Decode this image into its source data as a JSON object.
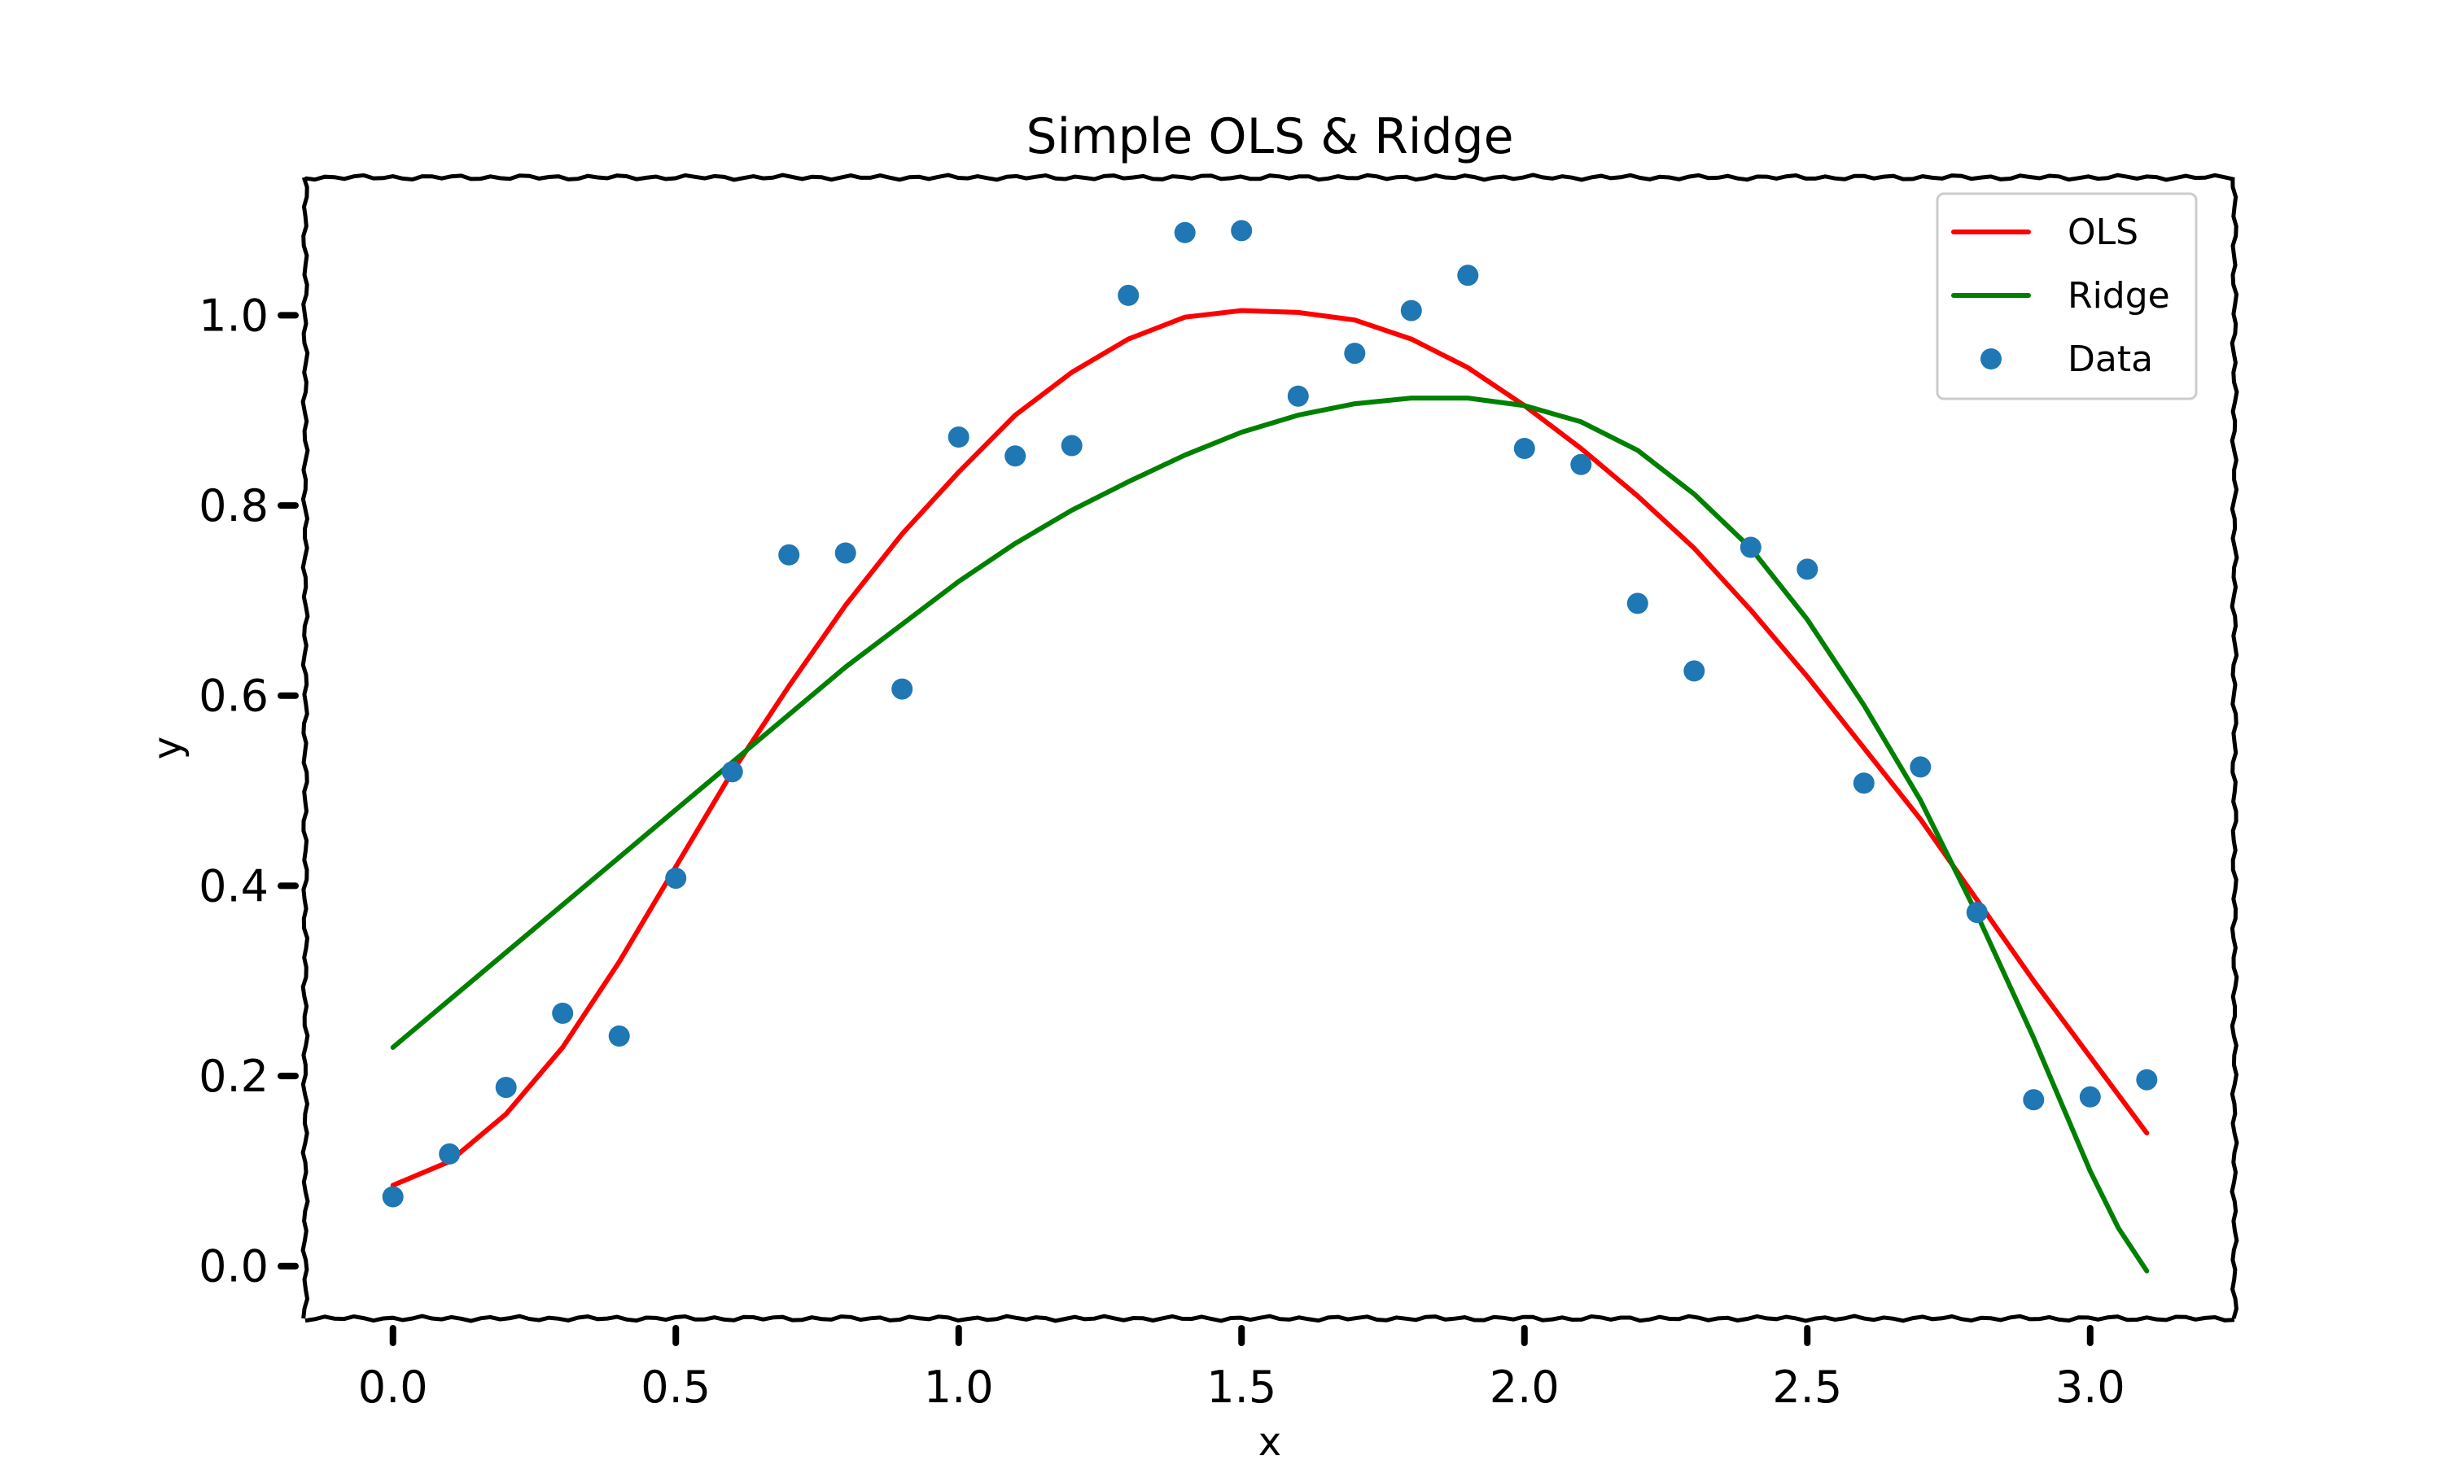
{
  "chart_data": {
    "type": "line",
    "title": "Simple OLS & Ridge",
    "xlabel": "x",
    "ylabel": "y",
    "xlim": [
      -0.155,
      3.255
    ],
    "ylim": [
      -0.055,
      1.145
    ],
    "xticks": [
      0.0,
      0.5,
      1.0,
      1.5,
      2.0,
      2.5,
      3.0
    ],
    "xtick_labels": [
      "0.0",
      "0.5",
      "1.0",
      "1.5",
      "2.0",
      "2.5",
      "3.0"
    ],
    "yticks": [
      0.0,
      0.2,
      0.4,
      0.6,
      0.8,
      1.0
    ],
    "ytick_labels": [
      "0.0",
      "0.2",
      "0.4",
      "0.6",
      "0.8",
      "1.0"
    ],
    "grid": false,
    "legend_position": "top-right",
    "legend": [
      "OLS",
      "Ridge",
      "Data"
    ],
    "series": [
      {
        "name": "OLS",
        "kind": "line",
        "color": "#ff0000",
        "x": [
          0.0,
          0.1,
          0.2,
          0.3,
          0.4,
          0.5,
          0.6,
          0.7,
          0.8,
          0.9,
          1.0,
          1.1,
          1.2,
          1.3,
          1.4,
          1.5,
          1.6,
          1.7,
          1.8,
          1.9,
          2.0,
          2.1,
          2.2,
          2.3,
          2.4,
          2.5,
          2.6,
          2.7,
          2.8,
          2.9,
          3.0,
          3.1
        ],
        "y": [
          0.085,
          0.11,
          0.16,
          0.23,
          0.32,
          0.42,
          0.52,
          0.61,
          0.695,
          0.77,
          0.835,
          0.895,
          0.94,
          0.975,
          0.998,
          1.005,
          1.003,
          0.995,
          0.975,
          0.945,
          0.905,
          0.86,
          0.81,
          0.755,
          0.69,
          0.62,
          0.545,
          0.47,
          0.385,
          0.3,
          0.22,
          0.14
        ]
      },
      {
        "name": "Ridge",
        "kind": "line",
        "color": "#008000",
        "x": [
          0.0,
          0.1,
          0.2,
          0.3,
          0.4,
          0.5,
          0.6,
          0.7,
          0.8,
          0.9,
          1.0,
          1.1,
          1.2,
          1.3,
          1.4,
          1.5,
          1.6,
          1.7,
          1.8,
          1.9,
          2.0,
          2.1,
          2.2,
          2.3,
          2.4,
          2.5,
          2.6,
          2.7,
          2.8,
          2.9,
          3.0,
          3.05,
          3.1
        ],
        "y": [
          0.23,
          0.28,
          0.33,
          0.38,
          0.43,
          0.48,
          0.53,
          0.58,
          0.63,
          0.675,
          0.72,
          0.76,
          0.795,
          0.825,
          0.853,
          0.877,
          0.895,
          0.907,
          0.913,
          0.913,
          0.905,
          0.888,
          0.858,
          0.812,
          0.755,
          0.68,
          0.59,
          0.49,
          0.37,
          0.24,
          0.1,
          0.04,
          -0.005
        ]
      },
      {
        "name": "Data",
        "kind": "scatter",
        "color": "#1f77b4",
        "x": [
          0.0,
          0.1,
          0.2,
          0.3,
          0.4,
          0.5,
          0.6,
          0.7,
          0.8,
          0.9,
          1.0,
          1.1,
          1.2,
          1.3,
          1.4,
          1.5,
          1.6,
          1.7,
          1.8,
          1.9,
          2.0,
          2.1,
          2.2,
          2.3,
          2.4,
          2.5,
          2.6,
          2.7,
          2.8,
          2.9,
          3.0,
          3.1
        ],
        "y": [
          0.073,
          0.118,
          0.188,
          0.266,
          0.242,
          0.408,
          0.52,
          0.748,
          0.75,
          0.607,
          0.872,
          0.852,
          0.863,
          1.021,
          1.087,
          1.089,
          0.915,
          0.96,
          1.005,
          1.042,
          0.86,
          0.843,
          0.697,
          0.626,
          0.756,
          0.733,
          0.508,
          0.525,
          0.372,
          0.175,
          0.178,
          0.196
        ]
      }
    ]
  }
}
